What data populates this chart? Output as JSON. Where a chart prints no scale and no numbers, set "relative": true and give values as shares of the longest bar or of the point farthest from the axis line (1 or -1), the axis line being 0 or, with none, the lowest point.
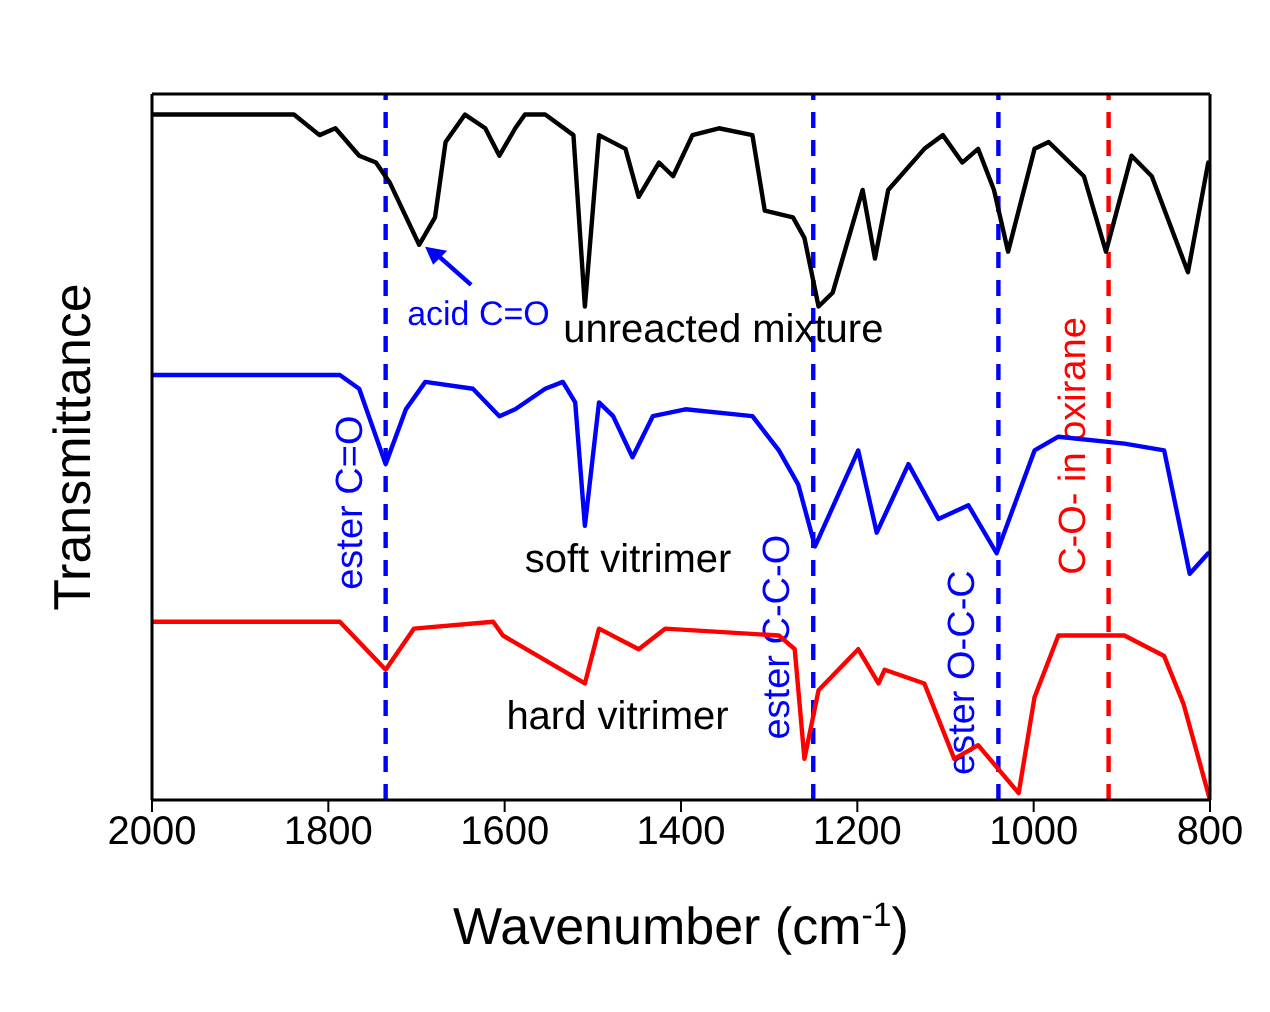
{
  "chart_data": {
    "type": "line",
    "xlabel": "Wavenumber (cm$^{-1}$)",
    "ylabel": "Transmittance",
    "relative": true,
    "xlim": [
      2000,
      800
    ],
    "xticks": [
      2000,
      1800,
      1600,
      1400,
      1200,
      1000,
      800
    ],
    "series": [
      {
        "name": "unreacted mixture",
        "color": "#000000",
        "x": [
          2000,
          1839,
          1810,
          1792,
          1765,
          1746,
          1730,
          1697,
          1679,
          1667,
          1645,
          1622,
          1606,
          1588,
          1577,
          1554,
          1522,
          1509,
          1493,
          1463,
          1448,
          1425,
          1409,
          1387,
          1357,
          1319,
          1305,
          1273,
          1260,
          1244,
          1228,
          1194,
          1180,
          1165,
          1124,
          1103,
          1081,
          1063,
          1045,
          1029,
          999,
          983,
          943,
          918,
          889,
          866,
          825,
          802
        ],
        "values": [
          1.0,
          1.0,
          0.97,
          0.98,
          0.94,
          0.93,
          0.9,
          0.81,
          0.85,
          0.96,
          1.0,
          0.98,
          0.94,
          0.98,
          1.0,
          1.0,
          0.97,
          0.72,
          0.97,
          0.95,
          0.88,
          0.93,
          0.91,
          0.97,
          0.98,
          0.97,
          0.86,
          0.85,
          0.82,
          0.72,
          0.74,
          0.89,
          0.79,
          0.89,
          0.95,
          0.97,
          0.93,
          0.95,
          0.89,
          0.8,
          0.95,
          0.96,
          0.91,
          0.8,
          0.94,
          0.91,
          0.77,
          0.93
        ]
      },
      {
        "name": "soft vitrimer",
        "color": "#0000ff",
        "x": [
          2000,
          1839,
          1787,
          1765,
          1735,
          1712,
          1690,
          1636,
          1606,
          1588,
          1554,
          1534,
          1520,
          1509,
          1493,
          1477,
          1455,
          1432,
          1395,
          1319,
          1289,
          1267,
          1248,
          1199,
          1178,
          1142,
          1108,
          1074,
          1042,
          999,
          972,
          897,
          852,
          823,
          802
        ],
        "values": [
          0.62,
          0.62,
          0.62,
          0.6,
          0.49,
          0.57,
          0.61,
          0.6,
          0.56,
          0.57,
          0.6,
          0.61,
          0.58,
          0.4,
          0.58,
          0.56,
          0.5,
          0.56,
          0.57,
          0.56,
          0.51,
          0.46,
          0.37,
          0.51,
          0.39,
          0.49,
          0.41,
          0.43,
          0.36,
          0.51,
          0.53,
          0.52,
          0.51,
          0.33,
          0.36
        ]
      },
      {
        "name": "hard vitrimer",
        "color": "#ff0000",
        "x": [
          2000,
          1787,
          1735,
          1703,
          1613,
          1602,
          1509,
          1493,
          1448,
          1418,
          1289,
          1271,
          1260,
          1244,
          1199,
          1176,
          1169,
          1124,
          1090,
          1063,
          1017,
          999,
          972,
          897,
          852,
          830,
          800
        ],
        "values": [
          0.26,
          0.26,
          0.19,
          0.25,
          0.26,
          0.24,
          0.17,
          0.25,
          0.22,
          0.25,
          0.24,
          0.22,
          0.06,
          0.16,
          0.22,
          0.17,
          0.19,
          0.17,
          0.06,
          0.08,
          0.01,
          0.15,
          0.24,
          0.24,
          0.21,
          0.14,
          0.0
        ]
      }
    ],
    "ref_lines": [
      {
        "axis": "x",
        "value": 1735,
        "label": "ester C=O",
        "color": "#0000ff",
        "line_style": "dashed"
      },
      {
        "axis": "x",
        "value": 1250,
        "label": "ester C-C-O",
        "color": "#0000ff",
        "line_style": "dashed"
      },
      {
        "axis": "x",
        "value": 1040,
        "label": "ester O-C-C",
        "color": "#0000ff",
        "line_style": "dashed"
      },
      {
        "axis": "x",
        "value": 915,
        "label": "C-O- in oxirane",
        "color": "#ff0000",
        "line_style": "dashed"
      }
    ],
    "annotations": [
      {
        "text": "acid C=O",
        "x": 1697,
        "y": 0.81
      }
    ]
  }
}
